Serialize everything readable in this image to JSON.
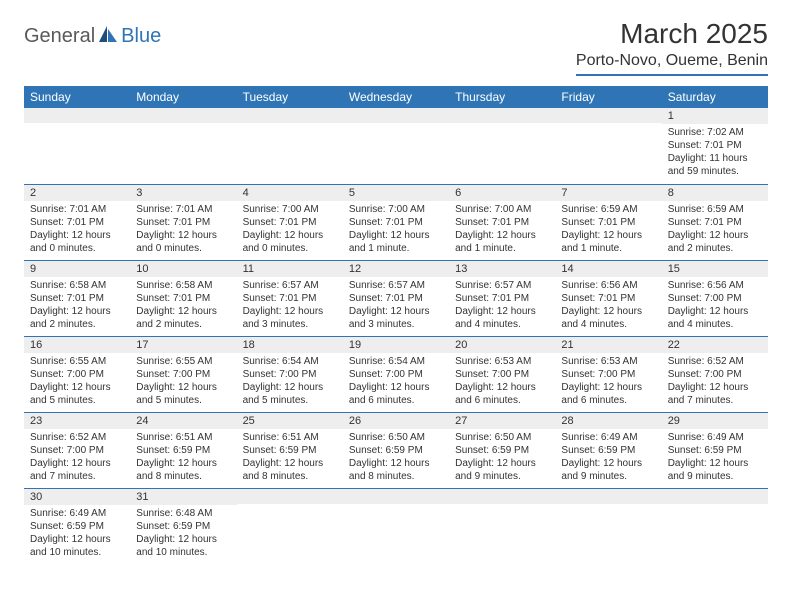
{
  "colors": {
    "header_bg": "#2f75b5",
    "header_text": "#ffffff",
    "daynum_bg": "#eeeeee",
    "row_border": "#2f75b5",
    "text": "#333333",
    "logo_gray": "#5a5a5a",
    "logo_blue": "#2f75b5",
    "page_bg": "#ffffff"
  },
  "logo": {
    "part1": "General",
    "part2": "Blue"
  },
  "title": "March 2025",
  "location": "Porto-Novo, Oueme, Benin",
  "weekdays": [
    "Sunday",
    "Monday",
    "Tuesday",
    "Wednesday",
    "Thursday",
    "Friday",
    "Saturday"
  ],
  "weeks": [
    [
      {
        "n": "",
        "sr": "",
        "ss": "",
        "dl": ""
      },
      {
        "n": "",
        "sr": "",
        "ss": "",
        "dl": ""
      },
      {
        "n": "",
        "sr": "",
        "ss": "",
        "dl": ""
      },
      {
        "n": "",
        "sr": "",
        "ss": "",
        "dl": ""
      },
      {
        "n": "",
        "sr": "",
        "ss": "",
        "dl": ""
      },
      {
        "n": "",
        "sr": "",
        "ss": "",
        "dl": ""
      },
      {
        "n": "1",
        "sr": "Sunrise: 7:02 AM",
        "ss": "Sunset: 7:01 PM",
        "dl": "Daylight: 11 hours and 59 minutes."
      }
    ],
    [
      {
        "n": "2",
        "sr": "Sunrise: 7:01 AM",
        "ss": "Sunset: 7:01 PM",
        "dl": "Daylight: 12 hours and 0 minutes."
      },
      {
        "n": "3",
        "sr": "Sunrise: 7:01 AM",
        "ss": "Sunset: 7:01 PM",
        "dl": "Daylight: 12 hours and 0 minutes."
      },
      {
        "n": "4",
        "sr": "Sunrise: 7:00 AM",
        "ss": "Sunset: 7:01 PM",
        "dl": "Daylight: 12 hours and 0 minutes."
      },
      {
        "n": "5",
        "sr": "Sunrise: 7:00 AM",
        "ss": "Sunset: 7:01 PM",
        "dl": "Daylight: 12 hours and 1 minute."
      },
      {
        "n": "6",
        "sr": "Sunrise: 7:00 AM",
        "ss": "Sunset: 7:01 PM",
        "dl": "Daylight: 12 hours and 1 minute."
      },
      {
        "n": "7",
        "sr": "Sunrise: 6:59 AM",
        "ss": "Sunset: 7:01 PM",
        "dl": "Daylight: 12 hours and 1 minute."
      },
      {
        "n": "8",
        "sr": "Sunrise: 6:59 AM",
        "ss": "Sunset: 7:01 PM",
        "dl": "Daylight: 12 hours and 2 minutes."
      }
    ],
    [
      {
        "n": "9",
        "sr": "Sunrise: 6:58 AM",
        "ss": "Sunset: 7:01 PM",
        "dl": "Daylight: 12 hours and 2 minutes."
      },
      {
        "n": "10",
        "sr": "Sunrise: 6:58 AM",
        "ss": "Sunset: 7:01 PM",
        "dl": "Daylight: 12 hours and 2 minutes."
      },
      {
        "n": "11",
        "sr": "Sunrise: 6:57 AM",
        "ss": "Sunset: 7:01 PM",
        "dl": "Daylight: 12 hours and 3 minutes."
      },
      {
        "n": "12",
        "sr": "Sunrise: 6:57 AM",
        "ss": "Sunset: 7:01 PM",
        "dl": "Daylight: 12 hours and 3 minutes."
      },
      {
        "n": "13",
        "sr": "Sunrise: 6:57 AM",
        "ss": "Sunset: 7:01 PM",
        "dl": "Daylight: 12 hours and 4 minutes."
      },
      {
        "n": "14",
        "sr": "Sunrise: 6:56 AM",
        "ss": "Sunset: 7:01 PM",
        "dl": "Daylight: 12 hours and 4 minutes."
      },
      {
        "n": "15",
        "sr": "Sunrise: 6:56 AM",
        "ss": "Sunset: 7:00 PM",
        "dl": "Daylight: 12 hours and 4 minutes."
      }
    ],
    [
      {
        "n": "16",
        "sr": "Sunrise: 6:55 AM",
        "ss": "Sunset: 7:00 PM",
        "dl": "Daylight: 12 hours and 5 minutes."
      },
      {
        "n": "17",
        "sr": "Sunrise: 6:55 AM",
        "ss": "Sunset: 7:00 PM",
        "dl": "Daylight: 12 hours and 5 minutes."
      },
      {
        "n": "18",
        "sr": "Sunrise: 6:54 AM",
        "ss": "Sunset: 7:00 PM",
        "dl": "Daylight: 12 hours and 5 minutes."
      },
      {
        "n": "19",
        "sr": "Sunrise: 6:54 AM",
        "ss": "Sunset: 7:00 PM",
        "dl": "Daylight: 12 hours and 6 minutes."
      },
      {
        "n": "20",
        "sr": "Sunrise: 6:53 AM",
        "ss": "Sunset: 7:00 PM",
        "dl": "Daylight: 12 hours and 6 minutes."
      },
      {
        "n": "21",
        "sr": "Sunrise: 6:53 AM",
        "ss": "Sunset: 7:00 PM",
        "dl": "Daylight: 12 hours and 6 minutes."
      },
      {
        "n": "22",
        "sr": "Sunrise: 6:52 AM",
        "ss": "Sunset: 7:00 PM",
        "dl": "Daylight: 12 hours and 7 minutes."
      }
    ],
    [
      {
        "n": "23",
        "sr": "Sunrise: 6:52 AM",
        "ss": "Sunset: 7:00 PM",
        "dl": "Daylight: 12 hours and 7 minutes."
      },
      {
        "n": "24",
        "sr": "Sunrise: 6:51 AM",
        "ss": "Sunset: 6:59 PM",
        "dl": "Daylight: 12 hours and 8 minutes."
      },
      {
        "n": "25",
        "sr": "Sunrise: 6:51 AM",
        "ss": "Sunset: 6:59 PM",
        "dl": "Daylight: 12 hours and 8 minutes."
      },
      {
        "n": "26",
        "sr": "Sunrise: 6:50 AM",
        "ss": "Sunset: 6:59 PM",
        "dl": "Daylight: 12 hours and 8 minutes."
      },
      {
        "n": "27",
        "sr": "Sunrise: 6:50 AM",
        "ss": "Sunset: 6:59 PM",
        "dl": "Daylight: 12 hours and 9 minutes."
      },
      {
        "n": "28",
        "sr": "Sunrise: 6:49 AM",
        "ss": "Sunset: 6:59 PM",
        "dl": "Daylight: 12 hours and 9 minutes."
      },
      {
        "n": "29",
        "sr": "Sunrise: 6:49 AM",
        "ss": "Sunset: 6:59 PM",
        "dl": "Daylight: 12 hours and 9 minutes."
      }
    ],
    [
      {
        "n": "30",
        "sr": "Sunrise: 6:49 AM",
        "ss": "Sunset: 6:59 PM",
        "dl": "Daylight: 12 hours and 10 minutes."
      },
      {
        "n": "31",
        "sr": "Sunrise: 6:48 AM",
        "ss": "Sunset: 6:59 PM",
        "dl": "Daylight: 12 hours and 10 minutes."
      },
      {
        "n": "",
        "sr": "",
        "ss": "",
        "dl": ""
      },
      {
        "n": "",
        "sr": "",
        "ss": "",
        "dl": ""
      },
      {
        "n": "",
        "sr": "",
        "ss": "",
        "dl": ""
      },
      {
        "n": "",
        "sr": "",
        "ss": "",
        "dl": ""
      },
      {
        "n": "",
        "sr": "",
        "ss": "",
        "dl": ""
      }
    ]
  ]
}
